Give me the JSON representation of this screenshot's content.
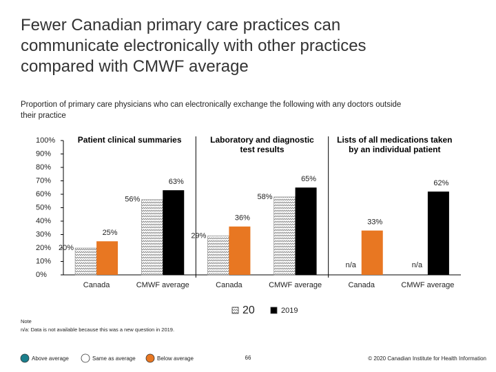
{
  "chart_data": {
    "type": "bar",
    "title": "Fewer Canadian primary care practices can communicate electronically with other practices compared with CMWF average",
    "subtitle": "Proportion of primary care physicians who can electronically exchange the following with any doctors outside their practice",
    "groups": [
      "Patient clinical summaries",
      "Laboratory and diagnostic test results",
      "Lists of all medications taken by an individual patient"
    ],
    "categories": [
      "Canada",
      "CMWF average",
      "Canada",
      "CMWF average",
      "Canada",
      "CMWF average"
    ],
    "series": [
      {
        "name": "20",
        "color": "#ffffff",
        "pattern": "zigzag",
        "values": [
          20,
          56,
          29,
          58,
          null,
          null
        ],
        "value_labels": [
          "20%",
          "56%",
          "29%",
          "58%",
          "n/a",
          "n/a"
        ]
      },
      {
        "name": "2019",
        "colors": [
          "#e87722",
          "#000000",
          "#e87722",
          "#000000",
          "#e87722",
          "#000000"
        ],
        "values": [
          25,
          63,
          36,
          65,
          33,
          62
        ],
        "value_labels": [
          "25%",
          "63%",
          "36%",
          "65%",
          "33%",
          "62%"
        ]
      }
    ],
    "ylim": [
      0,
      100
    ],
    "yticks": [
      {
        "value": 0,
        "label": "0%"
      },
      {
        "value": 10,
        "label": "10%"
      },
      {
        "value": 20,
        "label": "20%"
      },
      {
        "value": 30,
        "label": "30%"
      },
      {
        "value": 40,
        "label": "40%"
      },
      {
        "value": 50,
        "label": "50%"
      },
      {
        "value": 60,
        "label": "60%"
      },
      {
        "value": 70,
        "label": "70%"
      },
      {
        "value": 80,
        "label": "80%"
      },
      {
        "value": 90,
        "label": "90%"
      },
      {
        "value": 100,
        "label": "100%"
      }
    ]
  },
  "note": [
    "Note",
    "n/a: Data is not available because this was a new question in 2019."
  ],
  "footer_legend": [
    {
      "label": "Above average",
      "color": "#1b7f8c"
    },
    {
      "label": "Same as average",
      "color": "#ffffff"
    },
    {
      "label": "Below average",
      "color": "#e87722"
    }
  ],
  "page_number": "66",
  "copyright": "© 2020 Canadian Institute for Health Information"
}
